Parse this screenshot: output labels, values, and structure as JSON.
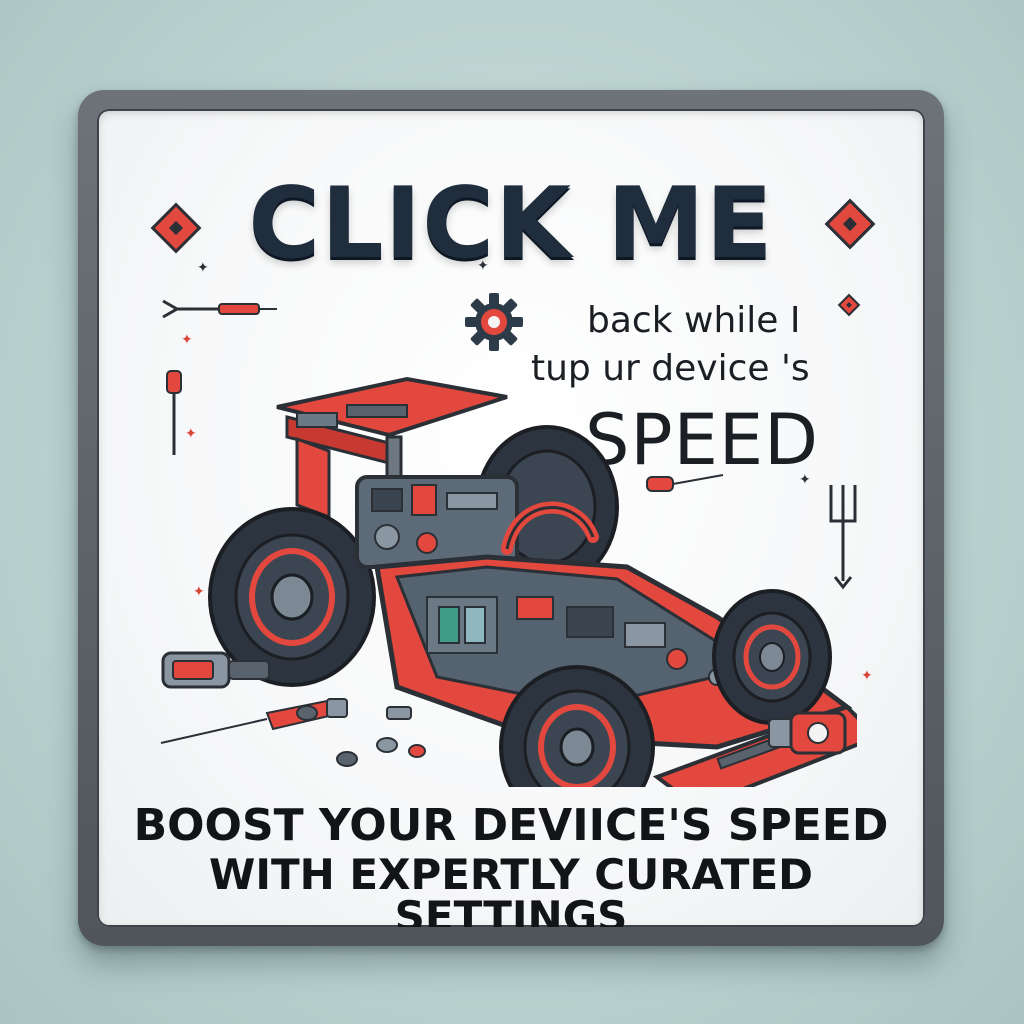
{
  "headline": "CLICK ME",
  "tagline": {
    "line1": "back while I",
    "line2": "tup ur device 's",
    "line3": "SPEED"
  },
  "subtext": {
    "line1": "BOOST  YOUR DEVIICE'S SPEED",
    "line2": "WITH EXPERTLY CURATED SETTINGS"
  },
  "colors": {
    "frame": "#5a6065",
    "panel": "#f7f8f9",
    "accent_red": "#e2483e",
    "ink_dark": "#1f2d3d",
    "background": "#b9d3d0"
  },
  "icons": [
    "race-car-illustration",
    "gear-icon",
    "screwdriver-icon",
    "fork-tool-icon",
    "usb-plug-icon",
    "diamond-ornament-icon",
    "sparkle-icon"
  ]
}
